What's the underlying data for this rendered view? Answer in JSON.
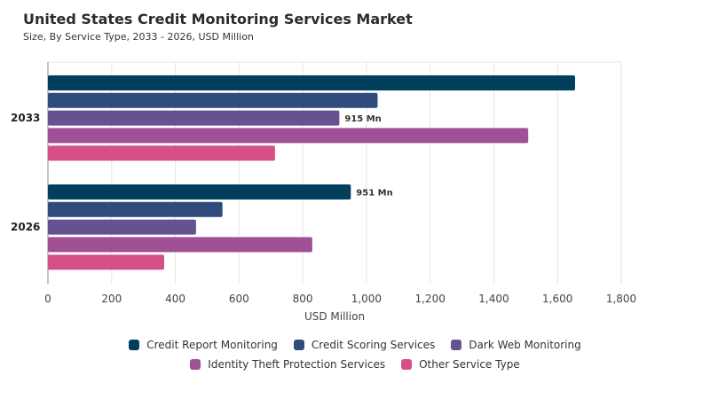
{
  "title": "United States Credit Monitoring Services Market",
  "subtitle": "Size, By Service Type, 2033 - 2026, USD Million",
  "chart_data": {
    "type": "bar",
    "orientation": "horizontal",
    "categories": [
      "2033",
      "2026"
    ],
    "series": [
      {
        "name": "Credit Report Monitoring",
        "color": "#023f5c",
        "values": [
          1655,
          951
        ]
      },
      {
        "name": "Credit Scoring Services",
        "color": "#2f4b7c",
        "values": [
          1035,
          548
        ]
      },
      {
        "name": "Dark Web Monitoring",
        "color": "#665191",
        "values": [
          915,
          465
        ]
      },
      {
        "name": "Identity Theft Protection Services",
        "color": "#a05195",
        "values": [
          1508,
          830
        ]
      },
      {
        "name": "Other Service Type",
        "color": "#d45087",
        "values": [
          713,
          365
        ]
      }
    ],
    "data_labels": [
      {
        "category": "2033",
        "series": "Dark Web Monitoring",
        "text": "915 Mn"
      },
      {
        "category": "2026",
        "series": "Credit Report Monitoring",
        "text": "951 Mn"
      }
    ],
    "xlabel": "USD Million",
    "ylabel": "",
    "xlim": [
      0,
      1800
    ],
    "x_ticks": [
      0,
      200,
      400,
      600,
      800,
      1000,
      1200,
      1400,
      1600,
      1800
    ],
    "x_tick_labels": [
      "0",
      "200",
      "400",
      "600",
      "800",
      "1,000",
      "1,200",
      "1,400",
      "1,600",
      "1,800"
    ],
    "grid": true,
    "legend_position": "bottom"
  }
}
